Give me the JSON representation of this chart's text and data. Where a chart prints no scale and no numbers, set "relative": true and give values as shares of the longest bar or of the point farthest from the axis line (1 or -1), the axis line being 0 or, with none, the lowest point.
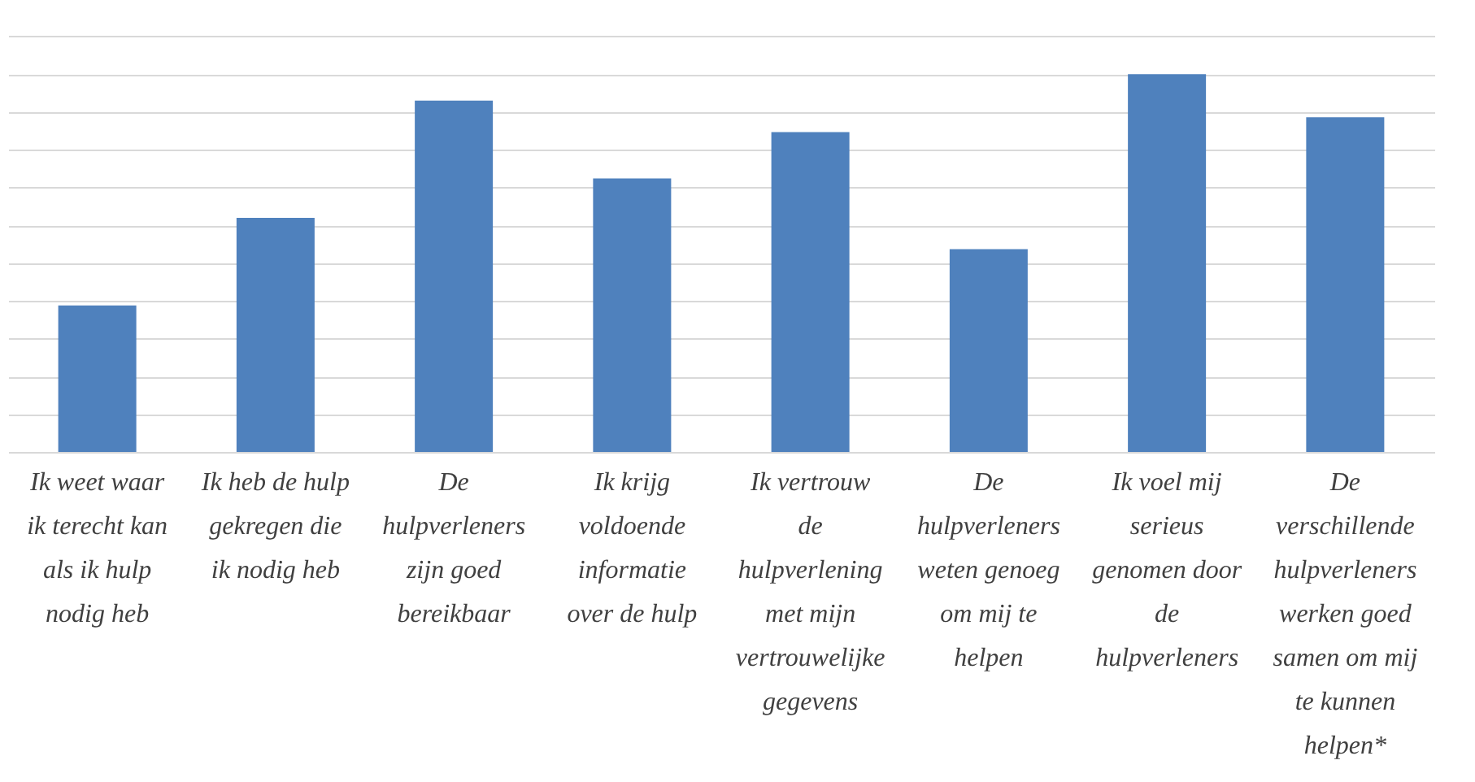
{
  "chart_data": {
    "type": "bar",
    "relative": true,
    "categories": [
      "Ik weet waar\nik terecht kan\nals ik hulp\nnodig heb",
      "Ik heb de hulp\ngekregen die\nik nodig heb",
      "De\nhulpverleners\nzijn goed\nbereikbaar",
      "Ik krijg\nvoldoende\ninformatie\nover de hulp",
      "Ik vertrouw\nde\nhulpverlening\nmet mijn\nvertrouwelijke\ngegevens",
      "De\nhulpverleners\nweten genoeg\nom mij te\nhelpen",
      "Ik voel mij\nserieus\ngenomen door\nde\nhulpverleners",
      "De\nverschillende\nhulpverleners\nwerken goed\nsamen om mij\nte kunnen\nhelpen*"
    ],
    "values": [
      0.388,
      0.62,
      0.93,
      0.724,
      0.847,
      0.537,
      1,
      0.886
    ],
    "color": "#4f81bd",
    "grid": "y"
  }
}
